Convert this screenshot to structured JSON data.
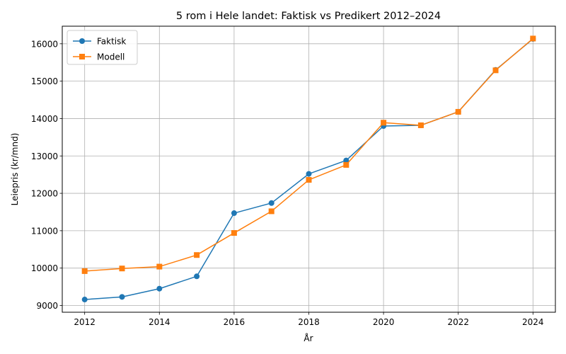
{
  "chart_data": {
    "type": "line",
    "title": "5 rom i Hele landet: Faktisk vs Predikert 2012–2024",
    "xlabel": "År",
    "ylabel": "Leiepris (kr/mnd)",
    "x": [
      2012,
      2013,
      2014,
      2015,
      2016,
      2017,
      2018,
      2019,
      2020,
      2021,
      2022,
      2023,
      2024
    ],
    "xlim": [
      2011.4,
      2024.6
    ],
    "ylim": [
      8820,
      16470
    ],
    "xticks": [
      2012,
      2014,
      2016,
      2018,
      2020,
      2022,
      2024
    ],
    "yticks": [
      9000,
      10000,
      11000,
      12000,
      13000,
      14000,
      15000,
      16000
    ],
    "grid": true,
    "legend_position": "top-left",
    "series": [
      {
        "name": "Faktisk",
        "color": "#1f77b4",
        "marker": "circle",
        "values": [
          9160,
          9230,
          9450,
          9780,
          11470,
          11740,
          12520,
          12880,
          13800,
          13820,
          14180,
          15300,
          16130
        ]
      },
      {
        "name": "Modell",
        "color": "#ff7f0e",
        "marker": "square",
        "values": [
          9920,
          9990,
          10040,
          10350,
          10940,
          11520,
          12360,
          12760,
          13890,
          13820,
          14180,
          15290,
          16140
        ]
      }
    ]
  }
}
